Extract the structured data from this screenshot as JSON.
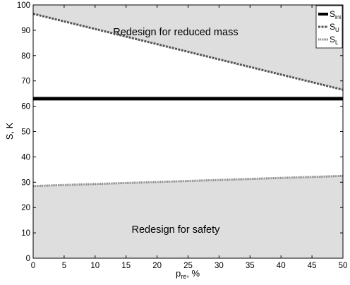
{
  "chart_data": {
    "type": "line",
    "xlabel_main": "p",
    "xlabel_sub": "re",
    "xlabel_rest": ", %",
    "ylabel": "S, K",
    "xlim": [
      0,
      50
    ],
    "ylim": [
      0,
      100
    ],
    "xticks": [
      "0",
      "5",
      "10",
      "15",
      "20",
      "25",
      "30",
      "35",
      "40",
      "45",
      "50"
    ],
    "yticks": [
      "0",
      "10",
      "20",
      "30",
      "40",
      "50",
      "60",
      "70",
      "80",
      "90",
      "100"
    ],
    "grid": false,
    "legend_placement": "top-right",
    "series": [
      {
        "name": "S",
        "sub": "ini",
        "style": "solid",
        "color": "#000000",
        "x": [
          0,
          50
        ],
        "y": [
          63,
          63
        ]
      },
      {
        "name": "S",
        "sub": "U",
        "style": "dashed",
        "color": "#555555",
        "x": [
          0,
          50
        ],
        "y": [
          96.5,
          66.5
        ]
      },
      {
        "name": "S",
        "sub": "L",
        "style": "dotted",
        "color": "#888888",
        "x": [
          0,
          50
        ],
        "y": [
          28.5,
          32.5
        ]
      }
    ],
    "regions": [
      {
        "label": "Redesign for reduced mass",
        "between": "upper",
        "fill": "#dedede",
        "label_at": [
          23,
          88
        ]
      },
      {
        "label": "Redesign for safety",
        "between": "lower",
        "fill": "#dedede",
        "label_at": [
          23,
          10
        ]
      }
    ]
  }
}
